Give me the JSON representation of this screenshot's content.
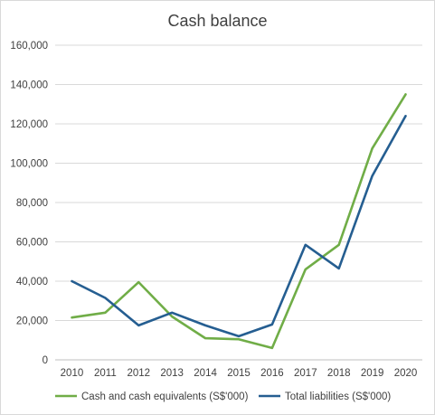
{
  "chart_data": {
    "type": "line",
    "title": "Cash balance",
    "xlabel": "",
    "ylabel": "",
    "categories": [
      "2010",
      "2011",
      "2012",
      "2013",
      "2014",
      "2015",
      "2016",
      "2017",
      "2018",
      "2019",
      "2020"
    ],
    "ylim": [
      0,
      160000
    ],
    "yticks": [
      0,
      20000,
      40000,
      60000,
      80000,
      100000,
      120000,
      140000,
      160000
    ],
    "ytick_labels": [
      "0",
      "20,000",
      "40,000",
      "60,000",
      "80,000",
      "100,000",
      "120,000",
      "140,000",
      "160,000"
    ],
    "grid": true,
    "legend_position": "bottom",
    "series": [
      {
        "name": "Cash and cash equivalents (S$'000)",
        "color": "#70ad47",
        "values": [
          21500,
          24000,
          39500,
          22000,
          11000,
          10500,
          6000,
          46000,
          58500,
          107500,
          135000
        ]
      },
      {
        "name": "Total liabilities (S$'000)",
        "color": "#255e91",
        "values": [
          40000,
          31500,
          17500,
          24000,
          17500,
          12000,
          18000,
          58500,
          46500,
          93500,
          124000
        ]
      }
    ]
  }
}
